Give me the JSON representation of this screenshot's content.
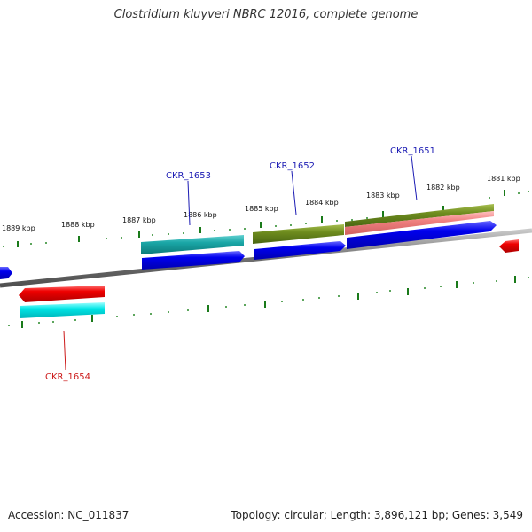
{
  "title": "Clostridium kluyveri NBRC 12016, complete genome",
  "accession": "Accession: NC_011837",
  "summary": "Topology: circular; Length: 3,896,121 bp; Genes: 3,549",
  "colors": {
    "backbone": "#808080",
    "tick": "#1a7a1a",
    "forward_cds": "#0000e6",
    "reverse_cds": "#e60000",
    "cyan_feature": "#00e0e6",
    "teal_feature": "#1aa6a6",
    "olive_feature": "#6e8c1e",
    "pink_feature": "#f08080",
    "label_forward": "#1a1ab3",
    "label_reverse": "#cc1a1a"
  },
  "scale_labels": [
    "1889 kbp",
    "1888 kbp",
    "1887 kbp",
    "1886 kbp",
    "1885 kbp",
    "1884 kbp",
    "1883 kbp",
    "1882 kbp",
    "1881 kbp"
  ],
  "gene_labels": [
    {
      "text": "CKR_1653",
      "strand": "forward"
    },
    {
      "text": "CKR_1652",
      "strand": "forward"
    },
    {
      "text": "CKR_1651",
      "strand": "forward"
    },
    {
      "text": "CKR_1654",
      "strand": "reverse"
    }
  ]
}
